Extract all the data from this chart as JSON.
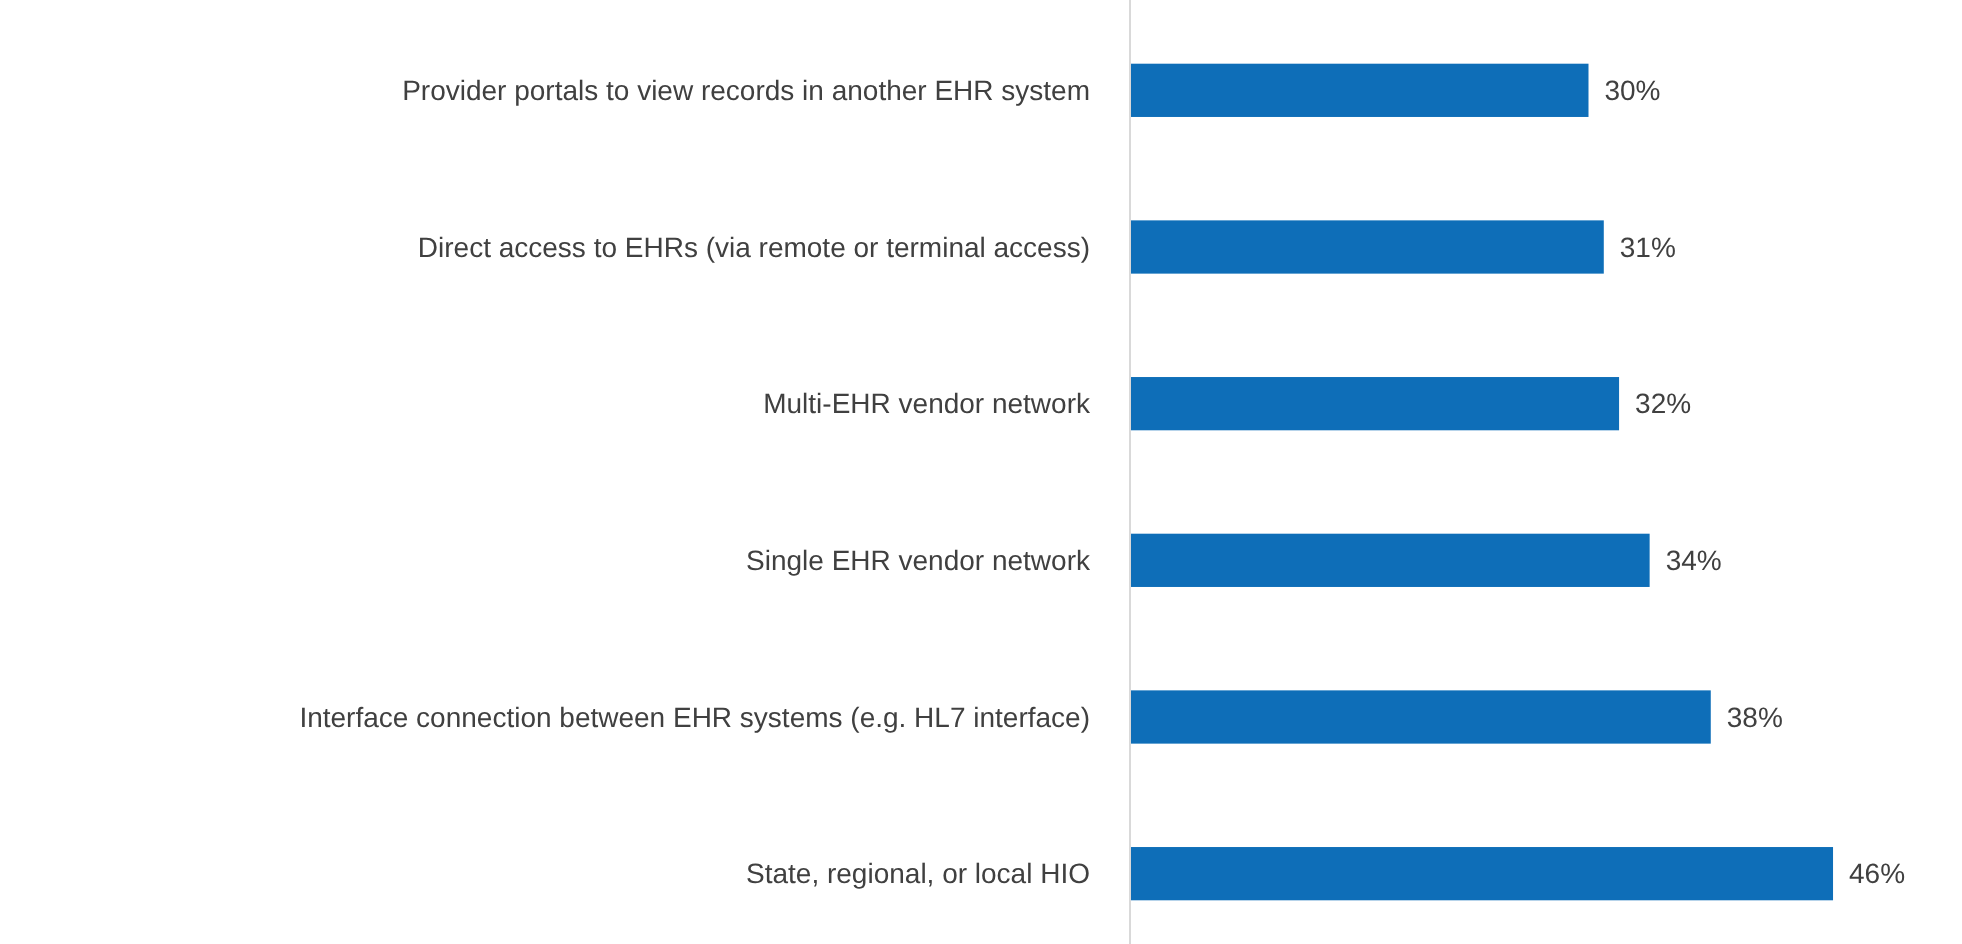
{
  "chart_data": {
    "type": "bar",
    "orientation": "horizontal",
    "relative": false,
    "categories": [
      "Provider portals to view records in another EHR system",
      "Direct access to EHRs (via remote or terminal access)",
      "Multi-EHR vendor network",
      "Single EHR vendor network",
      "Interface connection between EHR systems (e.g. HL7 interface)",
      "State, regional, or local HIO"
    ],
    "values": [
      30,
      31,
      32,
      34,
      38,
      46
    ],
    "value_labels": [
      "30%",
      "31%",
      "32%",
      "34%",
      "38%",
      "46%"
    ],
    "color": "#0e6eb8"
  }
}
